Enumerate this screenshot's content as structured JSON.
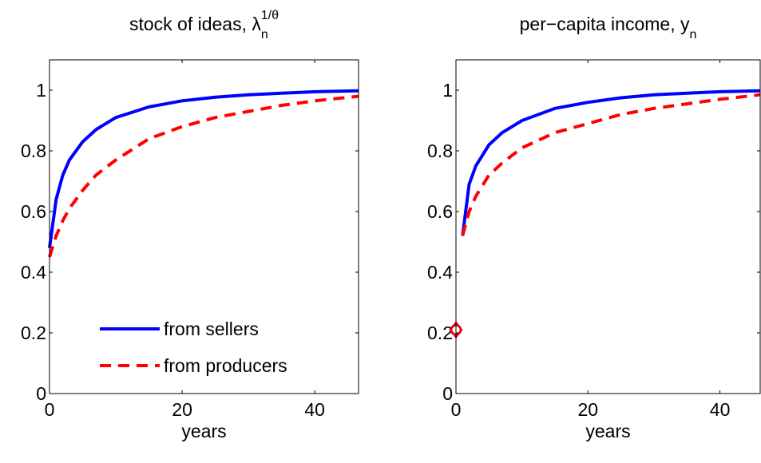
{
  "chart_data": [
    {
      "type": "line",
      "title": {
        "text": "stock of ideas, λ",
        "sub": "n",
        "sup": "1/θ"
      },
      "xlabel": "years",
      "xlim": [
        0,
        46.6
      ],
      "xticks": [
        0,
        20,
        40
      ],
      "ylim": [
        0,
        1.1
      ],
      "yticks": [
        0,
        0.2,
        0.4,
        0.6,
        0.8,
        1
      ],
      "legend": "lower right",
      "series": [
        {
          "name": "from sellers",
          "color": "#0000ff",
          "dash": false,
          "x": [
            0,
            1,
            2,
            3,
            5,
            7,
            10,
            15,
            20,
            25,
            30,
            35,
            40,
            46.6
          ],
          "values": [
            0.48,
            0.64,
            0.72,
            0.77,
            0.83,
            0.87,
            0.91,
            0.945,
            0.965,
            0.977,
            0.985,
            0.99,
            0.995,
            0.998
          ]
        },
        {
          "name": "from producers",
          "color": "#ff0000",
          "dash": true,
          "x": [
            0,
            1,
            2,
            3,
            5,
            7,
            10,
            15,
            20,
            25,
            30,
            35,
            40,
            46.6
          ],
          "values": [
            0.45,
            0.52,
            0.57,
            0.61,
            0.67,
            0.72,
            0.77,
            0.84,
            0.88,
            0.91,
            0.93,
            0.95,
            0.965,
            0.98
          ]
        }
      ]
    },
    {
      "type": "line",
      "title": {
        "text": "per−capita income, y",
        "sub": "n"
      },
      "xlabel": "years",
      "xlim": [
        0,
        46.1
      ],
      "xticks": [
        0,
        20,
        40
      ],
      "ylim": [
        0,
        1.1
      ],
      "yticks": [
        0,
        0.2,
        0.4,
        0.6,
        0.8,
        1
      ],
      "series": [
        {
          "color": "#0000ff",
          "dash": false,
          "x": [
            1,
            2,
            3,
            5,
            7,
            10,
            15,
            20,
            25,
            30,
            35,
            40,
            46.1
          ],
          "values": [
            0.52,
            0.69,
            0.75,
            0.82,
            0.86,
            0.9,
            0.94,
            0.96,
            0.975,
            0.985,
            0.99,
            0.995,
            0.998
          ]
        },
        {
          "color": "#ff0000",
          "dash": true,
          "x": [
            1,
            2,
            3,
            5,
            7,
            10,
            15,
            20,
            25,
            30,
            35,
            40,
            46.1
          ],
          "values": [
            0.52,
            0.6,
            0.65,
            0.72,
            0.76,
            0.81,
            0.86,
            0.89,
            0.92,
            0.94,
            0.955,
            0.97,
            0.985
          ]
        },
        {
          "color": "#0000ff",
          "marker": "circle",
          "x": [
            0
          ],
          "values": [
            0.21
          ]
        },
        {
          "color": "#ff0000",
          "marker": "diamond",
          "x": [
            0
          ],
          "values": [
            0.21
          ]
        }
      ]
    }
  ]
}
